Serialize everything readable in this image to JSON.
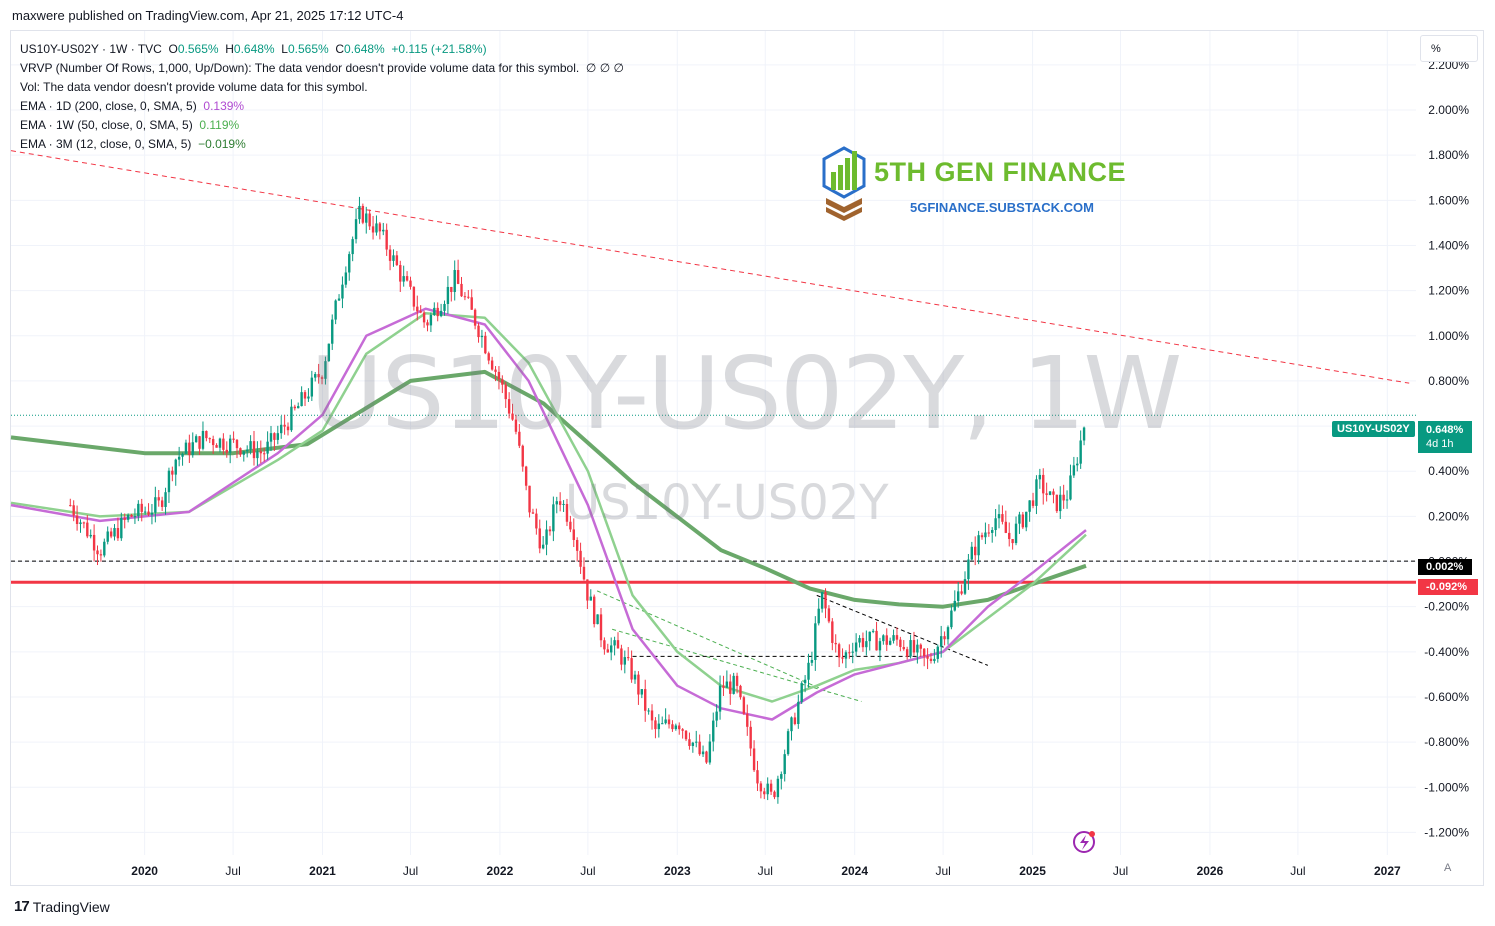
{
  "header": {
    "publish_line": "maxwere published on TradingView.com, Apr 21, 2025 17:12 UTC-4"
  },
  "legend": {
    "main": {
      "symbol": "US10Y-US02Y · 1W · TVC",
      "open_label": "O",
      "open": "0.565%",
      "high_label": "H",
      "high": "0.648%",
      "low_label": "L",
      "low": "0.565%",
      "close_label": "C",
      "close": "0.648%",
      "change": "+0.115 (+21.58%)"
    },
    "vrvp": "VRVP (Number Of Rows, 1,000, Up/Down): The data vendor doesn't provide volume data for this symbol.",
    "vrvp_values": "∅  ∅  ∅",
    "vol": "Vol: The data vendor doesn't provide volume data for this symbol.",
    "ema1": {
      "label": "EMA · 1D (200, close, 0, SMA, 5)",
      "value": "0.139%"
    },
    "ema2": {
      "label": "EMA · 1W (50, close, 0, SMA, 5)",
      "value": "0.119%"
    },
    "ema3": {
      "label": "EMA · 3M (12, close, 0, SMA, 5)",
      "value": "−0.019%"
    }
  },
  "toolbar": {
    "percent_button": "%",
    "auto_button": "A"
  },
  "watermark": {
    "big": "US10Y-US02Y, 1W",
    "small": "US10Y-US02Y"
  },
  "overlay_logo": {
    "title": "5TH GEN FINANCE",
    "url": "5GFINANCE.SUBSTACK.COM"
  },
  "price_tags": {
    "symbol": "US10Y-US02Y",
    "last": "0.648%",
    "countdown": "4d 1h",
    "zero_line": "0.002%",
    "support_line": "-0.092%"
  },
  "brand": {
    "name": "TradingView"
  },
  "colors": {
    "up": "#089981",
    "down": "#f23645",
    "ema_200d": "#c66bd6",
    "ema_50w": "#8fd18f",
    "ema_12m": "#6aa86a",
    "resistance": "#f23645",
    "support": "#f23645"
  },
  "chart_data": {
    "type": "line",
    "title": "US10Y-US02Y, 1W",
    "y_unit": "%",
    "ylim": [
      -1.3,
      2.35
    ],
    "xlim": [
      "2019-04-01",
      "2027-03-01"
    ],
    "y_ticks": [
      "2.200%",
      "2.000%",
      "1.800%",
      "1.600%",
      "1.400%",
      "1.200%",
      "1.000%",
      "0.800%",
      "0.600%",
      "0.400%",
      "0.200%",
      "0.000%",
      "-0.200%",
      "-0.400%",
      "-0.600%",
      "-0.800%",
      "-1.000%",
      "-1.200%"
    ],
    "x_ticks": [
      {
        "label": "2020",
        "date": "2020-01-01",
        "bold": true
      },
      {
        "label": "Jul",
        "date": "2020-07-01"
      },
      {
        "label": "2021",
        "date": "2021-01-01",
        "bold": true
      },
      {
        "label": "Jul",
        "date": "2021-07-01"
      },
      {
        "label": "2022",
        "date": "2022-01-01",
        "bold": true
      },
      {
        "label": "Jul",
        "date": "2022-07-01"
      },
      {
        "label": "2023",
        "date": "2023-01-01",
        "bold": true
      },
      {
        "label": "Jul",
        "date": "2023-07-01"
      },
      {
        "label": "2024",
        "date": "2024-01-01",
        "bold": true
      },
      {
        "label": "Jul",
        "date": "2024-07-01"
      },
      {
        "label": "2025",
        "date": "2025-01-01",
        "bold": true
      },
      {
        "label": "Jul",
        "date": "2025-07-01"
      },
      {
        "label": "2026",
        "date": "2026-01-01",
        "bold": true
      },
      {
        "label": "Jul",
        "date": "2026-07-01"
      },
      {
        "label": "2027",
        "date": "2027-01-01",
        "bold": true
      }
    ],
    "spread_close": {
      "name": "US10Y-US02Y",
      "points": [
        [
          "2019-08-01",
          0.25
        ],
        [
          "2019-10-01",
          0.05
        ],
        [
          "2019-12-01",
          0.2
        ],
        [
          "2020-02-01",
          0.25
        ],
        [
          "2020-03-01",
          0.45
        ],
        [
          "2020-05-01",
          0.55
        ],
        [
          "2020-07-01",
          0.52
        ],
        [
          "2020-09-01",
          0.48
        ],
        [
          "2020-11-01",
          0.65
        ],
        [
          "2021-01-01",
          0.85
        ],
        [
          "2021-02-15",
          1.3
        ],
        [
          "2021-03-20",
          1.55
        ],
        [
          "2021-05-01",
          1.45
        ],
        [
          "2021-06-15",
          1.25
        ],
        [
          "2021-08-01",
          1.05
        ],
        [
          "2021-10-01",
          1.25
        ],
        [
          "2021-11-15",
          1.05
        ],
        [
          "2022-01-01",
          0.8
        ],
        [
          "2022-02-01",
          0.6
        ],
        [
          "2022-03-01",
          0.25
        ],
        [
          "2022-04-01",
          0.05
        ],
        [
          "2022-05-01",
          0.3
        ],
        [
          "2022-06-01",
          0.15
        ],
        [
          "2022-07-01",
          -0.15
        ],
        [
          "2022-08-01",
          -0.35
        ],
        [
          "2022-09-01",
          -0.4
        ],
        [
          "2022-10-01",
          -0.5
        ],
        [
          "2022-11-15",
          -0.75
        ],
        [
          "2023-01-01",
          -0.7
        ],
        [
          "2023-02-01",
          -0.8
        ],
        [
          "2023-03-01",
          -0.9
        ],
        [
          "2023-04-01",
          -0.55
        ],
        [
          "2023-05-01",
          -0.55
        ],
        [
          "2023-06-15",
          -0.95
        ],
        [
          "2023-07-15",
          -1.05
        ],
        [
          "2023-08-15",
          -0.8
        ],
        [
          "2023-10-01",
          -0.45
        ],
        [
          "2023-10-25",
          -0.15
        ],
        [
          "2023-12-01",
          -0.45
        ],
        [
          "2024-01-01",
          -0.35
        ],
        [
          "2024-02-15",
          -0.35
        ],
        [
          "2024-04-01",
          -0.35
        ],
        [
          "2024-06-01",
          -0.45
        ],
        [
          "2024-07-15",
          -0.25
        ],
        [
          "2024-09-01",
          0.05
        ],
        [
          "2024-10-15",
          0.2
        ],
        [
          "2024-11-15",
          0.1
        ],
        [
          "2024-12-15",
          0.2
        ],
        [
          "2025-01-15",
          0.35
        ],
        [
          "2025-02-15",
          0.25
        ],
        [
          "2025-03-15",
          0.3
        ],
        [
          "2025-04-07",
          0.5
        ],
        [
          "2025-04-21",
          0.648
        ]
      ]
    },
    "ema_200d": {
      "name": "EMA · 1D (200, close, 0, SMA, 5)",
      "points": [
        [
          "2019-04-01",
          0.25
        ],
        [
          "2019-10-01",
          0.18
        ],
        [
          "2020-04-01",
          0.22
        ],
        [
          "2020-10-01",
          0.48
        ],
        [
          "2021-01-01",
          0.65
        ],
        [
          "2021-04-01",
          1.0
        ],
        [
          "2021-08-01",
          1.12
        ],
        [
          "2021-12-01",
          1.05
        ],
        [
          "2022-03-01",
          0.8
        ],
        [
          "2022-07-01",
          0.25
        ],
        [
          "2022-10-01",
          -0.3
        ],
        [
          "2023-01-01",
          -0.55
        ],
        [
          "2023-04-01",
          -0.65
        ],
        [
          "2023-07-15",
          -0.7
        ],
        [
          "2023-10-15",
          -0.58
        ],
        [
          "2024-01-01",
          -0.5
        ],
        [
          "2024-04-01",
          -0.45
        ],
        [
          "2024-07-01",
          -0.4
        ],
        [
          "2024-10-01",
          -0.2
        ],
        [
          "2025-01-01",
          -0.05
        ],
        [
          "2025-04-21",
          0.139
        ]
      ]
    },
    "ema_50w": {
      "name": "EMA · 1W (50, close, 0, SMA, 5)",
      "points": [
        [
          "2019-04-01",
          0.26
        ],
        [
          "2019-10-01",
          0.2
        ],
        [
          "2020-04-01",
          0.22
        ],
        [
          "2020-10-01",
          0.45
        ],
        [
          "2021-01-01",
          0.58
        ],
        [
          "2021-04-01",
          0.92
        ],
        [
          "2021-08-01",
          1.1
        ],
        [
          "2021-12-01",
          1.08
        ],
        [
          "2022-03-01",
          0.88
        ],
        [
          "2022-07-01",
          0.4
        ],
        [
          "2022-10-01",
          -0.15
        ],
        [
          "2023-01-01",
          -0.4
        ],
        [
          "2023-04-01",
          -0.55
        ],
        [
          "2023-07-15",
          -0.62
        ],
        [
          "2023-10-15",
          -0.55
        ],
        [
          "2024-01-01",
          -0.48
        ],
        [
          "2024-04-01",
          -0.45
        ],
        [
          "2024-07-01",
          -0.4
        ],
        [
          "2024-10-01",
          -0.25
        ],
        [
          "2025-01-01",
          -0.1
        ],
        [
          "2025-04-21",
          0.119
        ]
      ]
    },
    "ema_12m": {
      "name": "EMA · 3M (12, close, 0, SMA, 5)",
      "points": [
        [
          "2019-04-01",
          0.55
        ],
        [
          "2020-01-01",
          0.48
        ],
        [
          "2020-07-01",
          0.48
        ],
        [
          "2020-12-01",
          0.52
        ],
        [
          "2021-07-01",
          0.8
        ],
        [
          "2021-12-01",
          0.84
        ],
        [
          "2022-04-01",
          0.7
        ],
        [
          "2022-10-01",
          0.35
        ],
        [
          "2023-04-01",
          0.05
        ],
        [
          "2023-07-01",
          -0.03
        ],
        [
          "2023-10-01",
          -0.12
        ],
        [
          "2024-01-01",
          -0.17
        ],
        [
          "2024-04-01",
          -0.19
        ],
        [
          "2024-07-01",
          -0.2
        ],
        [
          "2024-10-01",
          -0.17
        ],
        [
          "2025-01-01",
          -0.1
        ],
        [
          "2025-04-21",
          -0.019
        ]
      ]
    },
    "lines": [
      {
        "name": "resistance-trendline",
        "from": [
          "2019-04-01",
          1.82
        ],
        "to": [
          "2027-02-15",
          0.79
        ],
        "style": "dashed",
        "color": "#f23645"
      },
      {
        "name": "zero-line",
        "y": 0.002,
        "style": "dashed",
        "color": "#000000"
      },
      {
        "name": "support-line",
        "y": -0.092,
        "style": "solid",
        "color": "#f23645"
      },
      {
        "name": "channel-top",
        "from": [
          "2022-07-20",
          -0.13
        ],
        "to": [
          "2023-11-10",
          -0.58
        ],
        "style": "dashed",
        "color": "#4caf50"
      },
      {
        "name": "channel-low",
        "from": [
          "2022-08-20",
          -0.3
        ],
        "to": [
          "2024-01-15",
          -0.62
        ],
        "style": "dashed",
        "color": "#4caf50"
      },
      {
        "name": "mid-level",
        "from": [
          "2022-10-01",
          -0.42
        ],
        "to": [
          "2024-06-01",
          -0.42
        ],
        "style": "dashed",
        "color": "#000000"
      },
      {
        "name": "descending-resistance",
        "from": [
          "2023-10-15",
          -0.15
        ],
        "to": [
          "2024-10-01",
          -0.46
        ],
        "style": "dashed",
        "color": "#000000"
      }
    ]
  }
}
